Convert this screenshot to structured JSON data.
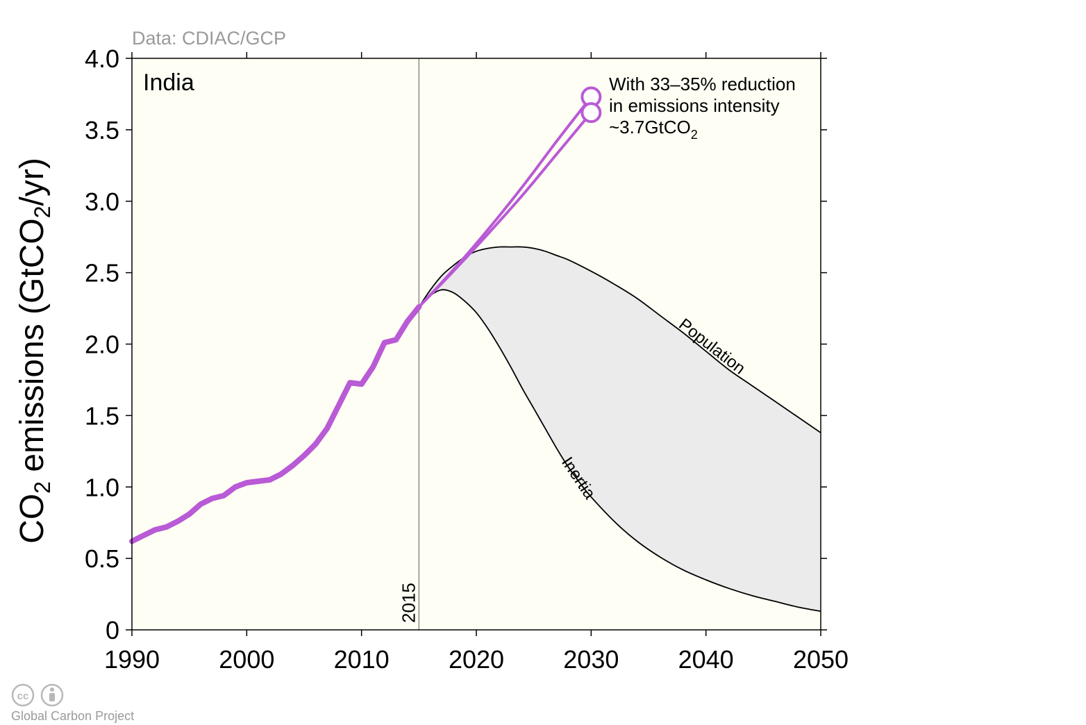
{
  "chart_data": {
    "type": "line",
    "source_label": "Data: CDIAC/GCP",
    "panel_label": "India",
    "ylabel": {
      "pre": "CO",
      "sub": "2",
      "mid": " emissions (GtCO",
      "sub2": "2",
      "post": "/yr)"
    },
    "xlim": [
      1990,
      2050
    ],
    "ylim": [
      0,
      4.0
    ],
    "x_ticks": [
      "1990",
      "2000",
      "2010",
      "2020",
      "2030",
      "2040",
      "2050"
    ],
    "y_ticks": [
      "0",
      "0.5",
      "1.0",
      "1.5",
      "2.0",
      "2.5",
      "3.0",
      "3.5",
      "4.0"
    ],
    "marker_line": {
      "x": 2015,
      "label": "2015"
    },
    "series": [
      {
        "name": "historical",
        "color": "#b95ad6",
        "x": [
          1990,
          1991,
          1992,
          1993,
          1994,
          1995,
          1996,
          1997,
          1998,
          1999,
          2000,
          2001,
          2002,
          2003,
          2004,
          2005,
          2006,
          2007,
          2008,
          2009,
          2010,
          2011,
          2012,
          2013,
          2014,
          2015
        ],
        "y": [
          0.62,
          0.66,
          0.7,
          0.72,
          0.76,
          0.81,
          0.88,
          0.92,
          0.94,
          1.0,
          1.03,
          1.04,
          1.05,
          1.09,
          1.15,
          1.22,
          1.3,
          1.41,
          1.57,
          1.73,
          1.72,
          1.84,
          2.01,
          2.03,
          2.16,
          2.26
        ]
      },
      {
        "name": "pledge-high",
        "color": "#b95ad6",
        "x": [
          2015,
          2018,
          2021,
          2024,
          2027,
          2030
        ],
        "y": [
          2.26,
          2.52,
          2.8,
          3.1,
          3.42,
          3.73
        ]
      },
      {
        "name": "pledge-low",
        "color": "#b95ad6",
        "x": [
          2015,
          2018,
          2021,
          2024,
          2027,
          2030
        ],
        "y": [
          2.26,
          2.51,
          2.77,
          3.04,
          3.33,
          3.62
        ]
      },
      {
        "name": "Population",
        "color": "#000000",
        "x": [
          2015,
          2016,
          2017,
          2018,
          2019,
          2020,
          2021,
          2022,
          2023,
          2024,
          2025,
          2026,
          2027,
          2028,
          2030,
          2032,
          2034,
          2036,
          2038,
          2040,
          2042,
          2044,
          2046,
          2048,
          2050
        ],
        "y": [
          2.26,
          2.38,
          2.48,
          2.55,
          2.61,
          2.65,
          2.67,
          2.68,
          2.68,
          2.68,
          2.67,
          2.65,
          2.62,
          2.59,
          2.51,
          2.42,
          2.32,
          2.2,
          2.08,
          1.95,
          1.82,
          1.71,
          1.6,
          1.49,
          1.38
        ]
      },
      {
        "name": "Inertia",
        "color": "#000000",
        "x": [
          2015,
          2016,
          2017,
          2018,
          2019,
          2020,
          2021,
          2022,
          2023,
          2024,
          2025,
          2026,
          2027,
          2028,
          2029,
          2030,
          2032,
          2034,
          2036,
          2038,
          2040,
          2042,
          2044,
          2046,
          2048,
          2050
        ],
        "y": [
          2.26,
          2.34,
          2.38,
          2.36,
          2.3,
          2.22,
          2.11,
          1.98,
          1.84,
          1.69,
          1.55,
          1.41,
          1.27,
          1.14,
          1.03,
          0.93,
          0.76,
          0.62,
          0.51,
          0.42,
          0.35,
          0.29,
          0.24,
          0.2,
          0.16,
          0.13
        ]
      }
    ],
    "endpoints": [
      {
        "x": 2030,
        "y": 3.73
      },
      {
        "x": 2030,
        "y": 3.62
      }
    ],
    "annotation": {
      "line1": "With 33–35% reduction",
      "line2": "in emissions intensity",
      "line3_pre": "~3.7GtCO",
      "line3_sub": "2"
    },
    "curve_labels": {
      "population": "Population",
      "inertia": "Inertia"
    },
    "colors": {
      "plot_bg": "#fefef4",
      "band_fill": "#ebebeb",
      "pledge": "#b95ad6",
      "grey_text": "#9a9a9a"
    }
  },
  "credit": {
    "text": "Global Carbon Project",
    "cc_icon": "cc-icon",
    "by_icon": "attribution-icon"
  }
}
